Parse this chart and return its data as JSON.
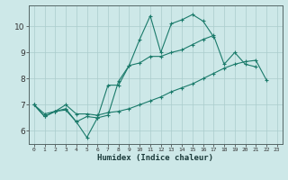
{
  "xlabel": "Humidex (Indice chaleur)",
  "bg_color": "#cde8e8",
  "grid_color": "#aacccc",
  "line_color": "#1a7a6a",
  "xlim": [
    -0.5,
    23.5
  ],
  "ylim": [
    5.5,
    10.8
  ],
  "yticks": [
    6,
    7,
    8,
    9,
    10
  ],
  "xticks": [
    0,
    1,
    2,
    3,
    4,
    5,
    6,
    7,
    8,
    9,
    10,
    11,
    12,
    13,
    14,
    15,
    16,
    17,
    18,
    19,
    20,
    21,
    22,
    23
  ],
  "line1_y": [
    7.0,
    6.55,
    6.75,
    6.8,
    6.35,
    5.75,
    6.5,
    6.6,
    7.9,
    8.5,
    9.5,
    10.4,
    9.0,
    10.1,
    10.25,
    10.45,
    10.2,
    9.6,
    null,
    null,
    null,
    null,
    null,
    null
  ],
  "line2_y": [
    7.0,
    6.55,
    6.75,
    6.85,
    6.35,
    6.55,
    6.5,
    7.75,
    7.75,
    8.5,
    8.6,
    8.85,
    8.85,
    9.0,
    9.1,
    9.3,
    9.5,
    9.65,
    8.55,
    9.0,
    8.55,
    8.45,
    null,
    null
  ],
  "line3_y": [
    7.0,
    6.65,
    6.75,
    7.0,
    6.65,
    6.65,
    6.6,
    6.7,
    6.75,
    6.85,
    7.0,
    7.15,
    7.3,
    7.5,
    7.65,
    7.8,
    8.0,
    8.2,
    8.4,
    8.55,
    8.65,
    8.7,
    7.95,
    null
  ]
}
